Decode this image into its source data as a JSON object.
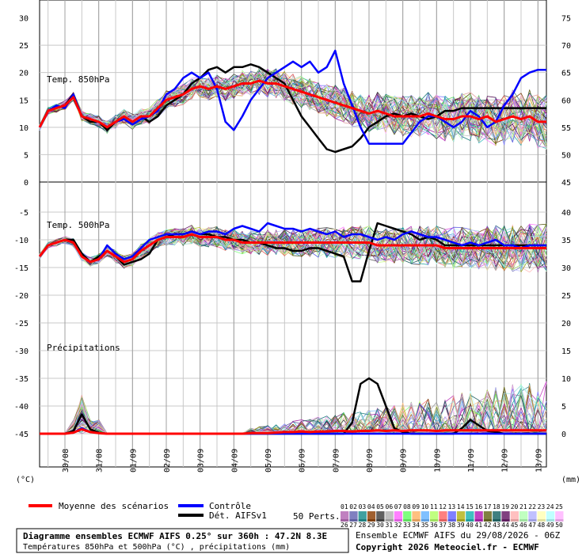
{
  "panels": {
    "upper_label": "Temp. 850hPa",
    "lower_label": "Temp. 500hPa",
    "precip_label": "Précipitations"
  },
  "axes": {
    "left_unit": "(°C)",
    "right_unit": "(mm)",
    "upper_left_ticks": [
      "30",
      "25",
      "20",
      "15",
      "10",
      "5",
      "0"
    ],
    "upper_right_ticks": [
      "75",
      "70",
      "65",
      "60",
      "55",
      "50",
      "45"
    ],
    "lower_left_ticks": [
      "-5",
      "-10",
      "-15",
      "-20",
      "-25",
      "-30",
      "-35",
      "-40",
      "-45"
    ],
    "lower_right_ticks": [
      "40",
      "35",
      "30",
      "25",
      "20",
      "15",
      "10",
      "5",
      "0"
    ],
    "date_labels": [
      "30/08",
      "31/08",
      "01/09",
      "02/09",
      "03/09",
      "04/09",
      "05/09",
      "06/09",
      "07/09",
      "08/09",
      "09/09",
      "10/09",
      "11/09",
      "12/09",
      "13/09"
    ]
  },
  "legend": {
    "mean": "Moyenne des scénarios",
    "control": "Contrôle",
    "det": "Dét. AIFSv1",
    "perts": "50 Perts.",
    "numbers_row1": [
      "01",
      "02",
      "03",
      "04",
      "05",
      "06",
      "07",
      "08",
      "09",
      "10",
      "11",
      "12",
      "13",
      "14",
      "15",
      "16",
      "17",
      "18",
      "19",
      "20",
      "21",
      "22",
      "23",
      "24",
      "25"
    ],
    "numbers_row2": [
      "26",
      "27",
      "28",
      "29",
      "30",
      "31",
      "32",
      "33",
      "34",
      "35",
      "36",
      "37",
      "38",
      "39",
      "40",
      "41",
      "42",
      "43",
      "44",
      "45",
      "46",
      "47",
      "48",
      "49",
      "50"
    ]
  },
  "footer": {
    "title": "Diagramme ensembles ECMWF AIFS 0.25° sur 360h : 47.2N 8.3E",
    "subtitle": "Températures 850hPa et 500hPa (°C) , précipitations (mm)",
    "run": "Ensemble ECMWF AIFS du 29/08/2026 - 06Z",
    "copyright": "Copyright 2026 Meteociel.fr - ECMWF"
  },
  "colors": {
    "mean": "#ff0000",
    "control": "#0000ff",
    "det": "#000000",
    "swatches_row1": [
      "#c080c0",
      "#8080c0",
      "#40a0a0",
      "#a06030",
      "#606060",
      "#c0c0c0",
      "#ff80ff",
      "#80ff80",
      "#ffc080",
      "#80c0ff",
      "#c0ff80",
      "#ff8080",
      "#8080ff",
      "#c0c040",
      "#40c0c0",
      "#c040c0",
      "#808040",
      "#408080",
      "#804080",
      "#ffc0c0",
      "#c0ffc0",
      "#c0c0ff",
      "#ffffc0",
      "#c0ffff",
      "#ffc0ff"
    ],
    "swatches_row2": [
      "#a060a0",
      "#6060a0",
      "#208080",
      "#804010",
      "#404040",
      "#a0a0a0",
      "#e060e0",
      "#60e060",
      "#e0a060",
      "#60a0e0",
      "#a0e060",
      "#e06060",
      "#6060e0",
      "#a0a020",
      "#20a0a0",
      "#a020a0",
      "#606020",
      "#206060",
      "#602060",
      "#e0a0a0",
      "#a0e0a0",
      "#a0a0e0",
      "#e0e0a0",
      "#a0e0e0",
      "#e0a0e0"
    ]
  },
  "chart_data": {
    "type": "line",
    "x_unit": "hours from 29/08/2026 06Z",
    "x_range": [
      0,
      360
    ],
    "x": [
      0,
      6,
      12,
      18,
      24,
      30,
      36,
      42,
      48,
      54,
      60,
      66,
      72,
      78,
      84,
      90,
      96,
      102,
      108,
      114,
      120,
      126,
      132,
      138,
      144,
      150,
      156,
      162,
      168,
      174,
      180,
      186,
      192,
      198,
      204,
      210,
      216,
      222,
      228,
      234,
      240,
      246,
      252,
      258,
      264,
      270,
      276,
      282,
      288,
      294,
      300,
      306,
      312,
      318,
      324,
      330,
      336,
      342,
      348,
      354,
      360
    ],
    "t850": {
      "ylim": [
        0,
        30
      ],
      "mean": [
        10,
        13,
        13.5,
        14,
        15.5,
        12,
        11.5,
        11,
        10,
        11,
        12,
        11,
        12,
        12,
        13.5,
        15,
        15.5,
        16,
        17,
        17.5,
        17,
        17.5,
        17,
        17.5,
        18,
        18,
        18.5,
        18,
        18,
        17.5,
        17,
        16.5,
        16,
        15.5,
        15,
        14.5,
        14,
        13.5,
        13,
        12.5,
        13,
        12.5,
        12,
        12,
        12,
        12,
        12.5,
        12,
        11.5,
        11.5,
        12,
        12,
        11.5,
        12,
        11,
        11.5,
        12,
        11.5,
        12,
        11,
        11
      ],
      "control": [
        10,
        13,
        14,
        13.5,
        16,
        12,
        11.5,
        11,
        10,
        11,
        11.5,
        10.5,
        11.5,
        12,
        13,
        16,
        17,
        19,
        20,
        19,
        20,
        17,
        11,
        9.5,
        12,
        15,
        17,
        19,
        20,
        21,
        22,
        21,
        22,
        20,
        21,
        24,
        18,
        14,
        10,
        7,
        7,
        7,
        7,
        7,
        9,
        11,
        12,
        12,
        11,
        10,
        11,
        13,
        12,
        10,
        11,
        14,
        16,
        19,
        20,
        20.5,
        20.5
      ],
      "det": [
        10,
        13,
        13.5,
        14,
        16,
        12,
        11,
        11,
        9.5,
        11,
        12,
        11,
        12,
        11,
        12,
        14,
        15,
        16,
        18,
        19,
        20.5,
        21,
        20,
        21,
        21,
        21.5,
        21,
        20,
        19,
        18,
        15,
        12,
        10,
        8,
        6,
        5.5,
        6,
        6.5,
        8,
        10,
        11,
        12,
        12.5,
        12,
        12.5,
        12,
        11.5,
        12,
        13,
        13,
        13.5,
        13.5,
        13.5,
        13.5,
        13.5,
        13.5,
        13.5,
        13.5,
        13.5,
        13.5,
        13.5
      ]
    },
    "t500": {
      "ylim": [
        -45,
        -5
      ],
      "mean": [
        -13,
        -11,
        -10.5,
        -10,
        -10.5,
        -13,
        -14,
        -13.5,
        -12,
        -13,
        -14,
        -13.5,
        -12,
        -11,
        -10,
        -9.5,
        -9.5,
        -9.5,
        -9,
        -9.5,
        -9.5,
        -9.5,
        -10,
        -10,
        -10.5,
        -10.5,
        -10.5,
        -10.5,
        -10.5,
        -10.5,
        -10.5,
        -10.5,
        -10.5,
        -10.5,
        -10.5,
        -10.5,
        -10.5,
        -10.5,
        -10.5,
        -10.5,
        -11,
        -11,
        -11,
        -11,
        -11,
        -11,
        -11,
        -11,
        -11.5,
        -11.5,
        -11.5,
        -11.5,
        -11.5,
        -11.5,
        -11.5,
        -11.5,
        -11.5,
        -11.5,
        -11.5,
        -11.5,
        -11.5
      ],
      "control": [
        -13,
        -11,
        -10.5,
        -10,
        -10.5,
        -13,
        -14,
        -13.5,
        -11,
        -12.5,
        -13.5,
        -13,
        -11.5,
        -10,
        -9.5,
        -9,
        -9,
        -9,
        -8.5,
        -9,
        -8.5,
        -8.5,
        -9,
        -8,
        -7.5,
        -8,
        -8.5,
        -7,
        -7.5,
        -8,
        -8,
        -8.5,
        -8,
        -8.5,
        -9,
        -8.5,
        -9.5,
        -9,
        -9,
        -9.5,
        -10,
        -9.5,
        -10,
        -9,
        -8.5,
        -9,
        -9.5,
        -9.5,
        -10,
        -10.5,
        -11,
        -10.5,
        -11,
        -10.5,
        -10,
        -11,
        -11,
        -11.5,
        -11,
        -11,
        -11
      ],
      "det": [
        -13,
        -11,
        -10.5,
        -10,
        -10,
        -12.5,
        -14,
        -13,
        -12,
        -13,
        -14.5,
        -14,
        -13.5,
        -12.5,
        -10,
        -9.5,
        -9,
        -9,
        -8.5,
        -9,
        -9,
        -9.5,
        -9.5,
        -10,
        -10,
        -10.5,
        -10.5,
        -11,
        -11.5,
        -11.5,
        -12,
        -12,
        -11.5,
        -11.5,
        -12,
        -12.5,
        -13,
        -17.5,
        -17.5,
        -12,
        -7,
        -7.5,
        -8,
        -8.5,
        -9,
        -10,
        -9.5,
        -10,
        -11,
        -11,
        -11,
        -11,
        -11,
        -11,
        -11,
        -11,
        -11,
        -11,
        -11,
        -11,
        -11
      ]
    },
    "precip": {
      "ylim": [
        0,
        15
      ],
      "mean": [
        0,
        0,
        0,
        0,
        0.2,
        0.8,
        0.3,
        0.1,
        0,
        0,
        0,
        0,
        0,
        0,
        0,
        0,
        0,
        0,
        0,
        0,
        0,
        0,
        0,
        0,
        0,
        0.1,
        0.1,
        0.1,
        0.2,
        0.3,
        0.3,
        0.4,
        0.3,
        0.4,
        0.4,
        0.5,
        0.5,
        0.4,
        0.5,
        0.5,
        0.6,
        0.5,
        0.6,
        0.5,
        0.6,
        0.6,
        0.6,
        0.5,
        0.6,
        0.6,
        0.6,
        0.6,
        0.6,
        0.6,
        0.6,
        0.6,
        0.6,
        0.6,
        0.6,
        0.6,
        0.6
      ],
      "control": [
        0,
        0,
        0,
        0,
        0.2,
        1,
        0.3,
        0.1,
        0,
        0,
        0,
        0,
        0,
        0,
        0,
        0,
        0,
        0,
        0,
        0,
        0,
        0,
        0,
        0,
        0,
        0,
        0,
        0,
        0,
        0,
        0,
        0,
        0,
        0,
        0,
        0,
        0,
        0,
        0,
        0,
        0,
        0,
        0,
        0,
        0,
        0,
        0,
        0,
        0,
        0,
        0,
        0,
        0,
        0,
        0,
        0,
        0,
        0,
        0,
        0,
        0
      ],
      "det": [
        0,
        0,
        0,
        0,
        0.5,
        3.5,
        0.8,
        0.2,
        0,
        0,
        0,
        0,
        0,
        0,
        0,
        0,
        0,
        0,
        0,
        0,
        0,
        0,
        0,
        0,
        0,
        0,
        0,
        0,
        0,
        0,
        0,
        0,
        0,
        0,
        0,
        0,
        0,
        2,
        9,
        10,
        9,
        5,
        1,
        0.3,
        0,
        0,
        0,
        0,
        0,
        0,
        1,
        2.5,
        1.5,
        0.5,
        0.3,
        0,
        0,
        0,
        0,
        0,
        0
      ]
    }
  }
}
